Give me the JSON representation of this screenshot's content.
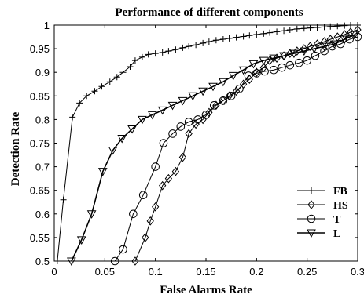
{
  "chart_data": {
    "type": "line",
    "title": "Performance of different components",
    "xlabel": "False Alarms Rate",
    "ylabel": "Detection Rate",
    "xlim": [
      0,
      0.3
    ],
    "ylim": [
      0.5,
      1.0
    ],
    "xticks": [
      0,
      0.05,
      0.1,
      0.15,
      0.2,
      0.25,
      0.3
    ],
    "xtick_labels": [
      "0",
      "0.05",
      "0.1",
      "0.15",
      "0.2",
      "0.25",
      "0.3"
    ],
    "yticks": [
      0.5,
      0.55,
      0.6,
      0.65,
      0.7,
      0.75,
      0.8,
      0.85,
      0.9,
      0.95,
      1.0
    ],
    "ytick_labels": [
      "0.5",
      "0.55",
      "0.6",
      "0.65",
      "0.7",
      "0.75",
      "0.8",
      "0.85",
      "0.9",
      "0.95",
      "1"
    ],
    "grid": false,
    "legend_position": "bottom-right",
    "series": [
      {
        "name": "FB",
        "marker": "plus",
        "x": [
          0.003,
          0.009,
          0.018,
          0.025,
          0.032,
          0.04,
          0.047,
          0.055,
          0.062,
          0.068,
          0.075,
          0.08,
          0.087,
          0.093,
          0.1,
          0.107,
          0.113,
          0.12,
          0.127,
          0.133,
          0.14,
          0.147,
          0.153,
          0.16,
          0.167,
          0.173,
          0.18,
          0.187,
          0.193,
          0.2,
          0.207,
          0.213,
          0.22,
          0.227,
          0.233,
          0.24,
          0.247,
          0.253,
          0.26,
          0.267,
          0.273,
          0.28,
          0.287,
          0.293,
          0.3
        ],
        "y": [
          0.5,
          0.63,
          0.805,
          0.835,
          0.85,
          0.86,
          0.87,
          0.88,
          0.89,
          0.9,
          0.912,
          0.925,
          0.932,
          0.938,
          0.94,
          0.942,
          0.945,
          0.948,
          0.952,
          0.955,
          0.958,
          0.962,
          0.965,
          0.968,
          0.97,
          0.972,
          0.974,
          0.976,
          0.978,
          0.98,
          0.982,
          0.984,
          0.986,
          0.988,
          0.99,
          0.992,
          0.993,
          0.994,
          0.995,
          0.996,
          0.997,
          0.998,
          0.999,
          1.0,
          1.0
        ]
      },
      {
        "name": "HS",
        "marker": "diamond",
        "x": [
          0.08,
          0.09,
          0.095,
          0.1,
          0.107,
          0.113,
          0.12,
          0.127,
          0.133,
          0.14,
          0.147,
          0.153,
          0.16,
          0.167,
          0.173,
          0.18,
          0.187,
          0.193,
          0.2,
          0.207,
          0.213,
          0.22,
          0.227,
          0.233,
          0.24,
          0.247,
          0.253,
          0.26,
          0.267,
          0.273,
          0.28,
          0.287,
          0.293,
          0.3
        ],
        "y": [
          0.5,
          0.55,
          0.585,
          0.615,
          0.66,
          0.675,
          0.69,
          0.72,
          0.77,
          0.79,
          0.8,
          0.815,
          0.83,
          0.84,
          0.85,
          0.86,
          0.875,
          0.885,
          0.9,
          0.91,
          0.925,
          0.93,
          0.935,
          0.94,
          0.945,
          0.95,
          0.955,
          0.96,
          0.965,
          0.97,
          0.975,
          0.98,
          0.985,
          0.99
        ]
      },
      {
        "name": "T",
        "marker": "circle",
        "x": [
          0.06,
          0.068,
          0.078,
          0.088,
          0.1,
          0.108,
          0.117,
          0.125,
          0.133,
          0.142,
          0.15,
          0.158,
          0.167,
          0.175,
          0.183,
          0.192,
          0.2,
          0.208,
          0.217,
          0.225,
          0.233,
          0.242,
          0.25,
          0.258,
          0.267,
          0.275,
          0.283,
          0.292,
          0.3
        ],
        "y": [
          0.5,
          0.525,
          0.6,
          0.64,
          0.7,
          0.75,
          0.77,
          0.785,
          0.795,
          0.8,
          0.81,
          0.83,
          0.84,
          0.85,
          0.865,
          0.893,
          0.898,
          0.902,
          0.905,
          0.91,
          0.915,
          0.92,
          0.925,
          0.935,
          0.945,
          0.955,
          0.96,
          0.97,
          0.975
        ]
      },
      {
        "name": "L",
        "marker": "triangle-down",
        "x": [
          0.017,
          0.027,
          0.037,
          0.048,
          0.058,
          0.067,
          0.077,
          0.087,
          0.097,
          0.107,
          0.117,
          0.127,
          0.137,
          0.147,
          0.157,
          0.167,
          0.177,
          0.187,
          0.197,
          0.207,
          0.217,
          0.227,
          0.237,
          0.247,
          0.257,
          0.267,
          0.277,
          0.287,
          0.297
        ],
        "y": [
          0.5,
          0.545,
          0.6,
          0.69,
          0.735,
          0.76,
          0.78,
          0.8,
          0.81,
          0.82,
          0.83,
          0.84,
          0.85,
          0.86,
          0.87,
          0.88,
          0.893,
          0.905,
          0.918,
          0.925,
          0.93,
          0.935,
          0.94,
          0.945,
          0.95,
          0.955,
          0.96,
          0.97,
          0.98
        ]
      }
    ]
  }
}
